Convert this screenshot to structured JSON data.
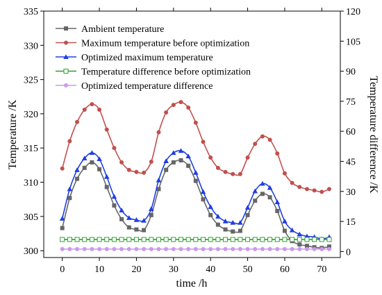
{
  "chart_data": {
    "type": "line",
    "xlabel": "time /h",
    "ylabel": "Temperature /K",
    "ylabel_right": "Temperature difference /K",
    "xlim": [
      -5,
      75
    ],
    "ylim": [
      299,
      335
    ],
    "ylim_right": [
      -3,
      120
    ],
    "x_ticks": [
      0,
      10,
      20,
      30,
      40,
      50,
      60,
      70
    ],
    "y_ticks": [
      300,
      305,
      310,
      315,
      320,
      325,
      330,
      335
    ],
    "y_ticks_right": [
      0,
      15,
      30,
      45,
      60,
      75,
      90,
      105,
      120
    ],
    "legend_position": "top-left",
    "grid": false,
    "x": [
      0,
      2,
      4,
      6,
      8,
      10,
      12,
      14,
      16,
      18,
      20,
      22,
      24,
      26,
      28,
      30,
      32,
      34,
      36,
      38,
      40,
      42,
      44,
      46,
      48,
      50,
      52,
      54,
      56,
      58,
      60,
      62,
      64,
      66,
      68,
      70,
      72
    ],
    "series": [
      {
        "name": "Ambient temperature",
        "axis": "left",
        "color": "#666666",
        "marker": "square",
        "values": [
          303.3,
          307.7,
          310.5,
          312.1,
          312.9,
          311.9,
          309.3,
          306.6,
          304.6,
          303.4,
          303.1,
          303.0,
          305.2,
          309.0,
          311.8,
          312.9,
          313.2,
          312.4,
          310.2,
          307.5,
          305.2,
          303.8,
          303.1,
          302.8,
          302.9,
          305.2,
          307.3,
          308.3,
          307.8,
          305.8,
          302.9,
          301.4,
          300.9,
          300.7,
          300.5,
          300.4,
          300.6
        ]
      },
      {
        "name": "Maximum temperature before optimization",
        "axis": "left",
        "color": "#c0504d",
        "marker": "circle",
        "values": [
          312.0,
          316.0,
          318.8,
          320.6,
          321.4,
          320.6,
          317.7,
          315.0,
          312.9,
          311.8,
          311.5,
          311.4,
          313.0,
          317.3,
          320.2,
          321.3,
          321.7,
          320.9,
          318.7,
          315.9,
          313.6,
          312.1,
          311.5,
          311.2,
          311.2,
          313.6,
          315.6,
          316.7,
          316.2,
          314.2,
          311.3,
          309.9,
          309.3,
          309.0,
          308.8,
          308.6,
          309.0
        ]
      },
      {
        "name": "Optimized maximum temperature",
        "axis": "left",
        "color": "#1f3fe0",
        "marker": "triangle",
        "values": [
          304.7,
          309.0,
          311.8,
          313.5,
          314.3,
          313.4,
          310.8,
          307.9,
          305.9,
          304.8,
          304.5,
          304.4,
          306.1,
          310.3,
          313.1,
          314.3,
          314.6,
          313.8,
          311.4,
          308.6,
          306.4,
          305.0,
          304.3,
          304.1,
          304.1,
          306.3,
          308.7,
          309.8,
          309.2,
          307.1,
          304.3,
          303.0,
          302.4,
          302.1,
          302.0,
          301.7,
          302.0
        ]
      },
      {
        "name": "Temperature difference before optimization",
        "axis": "right",
        "color": "#2aa02a",
        "marker": "open-square",
        "values": [
          6.0,
          6.0,
          6.0,
          6.0,
          6.0,
          6.0,
          6.0,
          6.0,
          6.0,
          6.0,
          6.0,
          6.0,
          6.0,
          6.0,
          6.0,
          6.0,
          6.0,
          6.0,
          6.0,
          6.0,
          6.0,
          6.0,
          6.0,
          6.0,
          6.0,
          6.0,
          6.0,
          6.0,
          6.0,
          6.0,
          6.0,
          6.0,
          6.0,
          6.0,
          6.0,
          6.0,
          6.0
        ]
      },
      {
        "name": "Optimized temperature difference",
        "axis": "right",
        "color": "#cc99ee",
        "marker": "circle",
        "values": [
          1.2,
          1.2,
          1.2,
          1.2,
          1.2,
          1.2,
          1.2,
          1.2,
          1.2,
          1.2,
          1.2,
          1.2,
          1.2,
          1.2,
          1.2,
          1.2,
          1.2,
          1.2,
          1.2,
          1.2,
          1.2,
          1.2,
          1.2,
          1.2,
          1.2,
          1.2,
          1.2,
          1.2,
          1.2,
          1.2,
          1.2,
          1.2,
          1.2,
          1.2,
          1.2,
          1.2,
          1.2
        ]
      }
    ]
  }
}
